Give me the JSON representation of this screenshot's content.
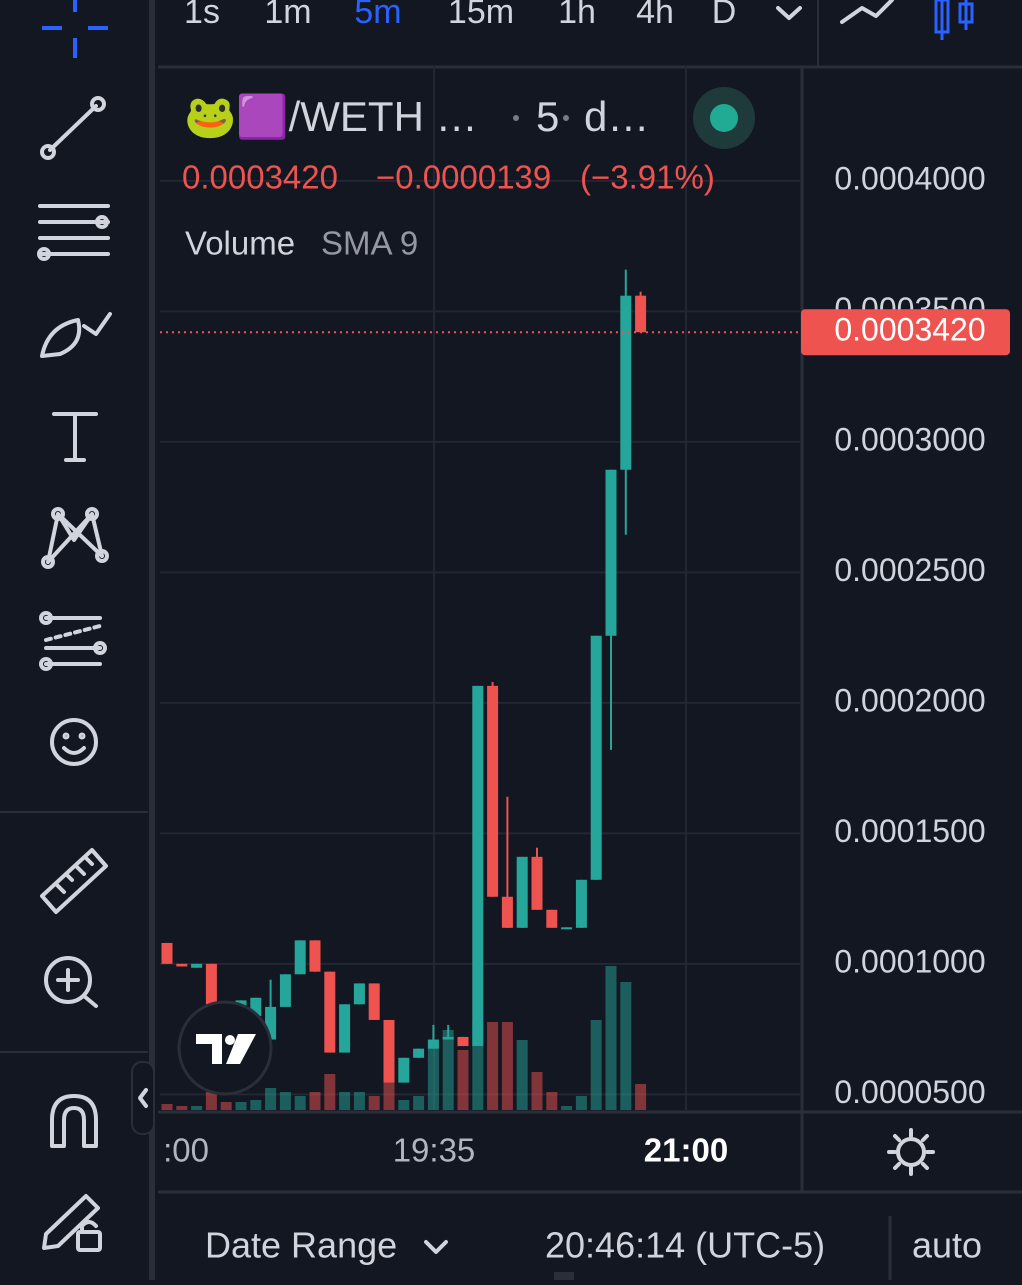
{
  "toolbar": {
    "timeframes": [
      "1s",
      "1m",
      "5m",
      "15m",
      "1h",
      "4h",
      "D"
    ],
    "active_index": 2
  },
  "legend": {
    "symbol": "🐸🟪/WETH …",
    "interval": "5",
    "exchange": "d…",
    "price": "0.0003420",
    "change": "−0.0000139",
    "change_percent": "(−3.91%)",
    "indicator": "Volume",
    "indicator_params": "SMA 9"
  },
  "chart_data": {
    "type": "candlestick",
    "open": [
      0.000108,
      0.0001,
      9.85e-05,
      0.0001,
      8.45e-05,
      8.35e-05,
      8e-05,
      7.1e-05,
      8.35e-05,
      9.6e-05,
      0.000109,
      9.7e-05,
      6.6e-05,
      8.45e-05,
      9.25e-05,
      7.85e-05,
      5.45e-05,
      6.4e-05,
      6.75e-05,
      7.1e-05,
      7.2e-05,
      6.85e-05,
      0.0002065,
      0.0001257,
      0.0001138,
      0.000141,
      0.0001207,
      0.0001138,
      0.0001138,
      0.0001322,
      0.0002257,
      0.0002893,
      0.000356
    ],
    "high": [
      0.000108,
      0.0001,
      0.0001,
      0.0001,
      8.45e-05,
      8.6e-05,
      8.7e-05,
      9.39e-05,
      9.6e-05,
      0.000109,
      0.000109,
      9.7e-05,
      8.45e-05,
      9.25e-05,
      9.25e-05,
      7.85e-05,
      6.4e-05,
      6.75e-05,
      7.66e-05,
      7.66e-05,
      7.2e-05,
      0.0002065,
      0.000208,
      0.000164,
      0.000141,
      0.0001445,
      0.0001207,
      0.000114,
      0.0001322,
      0.0002257,
      0.0002893,
      0.000366,
      0.0003575
    ],
    "low": [
      0.0001,
      9.9e-05,
      9.85e-05,
      8.45e-05,
      8.35e-05,
      8.35e-05,
      8e-05,
      7.1e-05,
      8.35e-05,
      9.6e-05,
      9.7e-05,
      6.6e-05,
      6.6e-05,
      8.45e-05,
      7.85e-05,
      5.45e-05,
      5.45e-05,
      6.4e-05,
      6.75e-05,
      7.1e-05,
      6.85e-05,
      6.85e-05,
      0.0001257,
      0.0001138,
      0.0001138,
      0.0001207,
      0.0001138,
      0.0001138,
      0.0001138,
      0.0001322,
      0.000182,
      0.0002644,
      0.000342
    ],
    "close": [
      0.0001,
      9.9e-05,
      0.0001,
      8.45e-05,
      8.35e-05,
      8.6e-05,
      8.7e-05,
      8.35e-05,
      9.6e-05,
      0.000109,
      9.7e-05,
      6.6e-05,
      8.45e-05,
      9.25e-05,
      7.85e-05,
      5.45e-05,
      6.4e-05,
      6.75e-05,
      7.1e-05,
      7.2e-05,
      6.85e-05,
      0.0002065,
      0.0001257,
      0.0001138,
      0.000141,
      0.0001207,
      0.0001138,
      0.000114,
      0.0001322,
      0.0002257,
      0.0002893,
      0.000356,
      0.000342
    ],
    "volume": [
      6,
      4,
      4,
      18,
      8,
      8,
      10,
      22,
      18,
      14,
      18,
      36,
      18,
      18,
      14,
      32,
      10,
      14,
      65,
      80,
      60,
      88,
      88,
      88,
      70,
      38,
      18,
      4,
      14,
      90,
      144,
      128,
      26
    ],
    "up_color": "#26a69a",
    "down_color": "#ef5350",
    "ylim": [
      4.4e-05,
      0.000444
    ],
    "yticks": [
      {
        "value": 5e-05,
        "label": "0.0000500"
      },
      {
        "value": 0.0001,
        "label": "0.0001000"
      },
      {
        "value": 0.00015,
        "label": "0.0001500"
      },
      {
        "value": 0.0002,
        "label": "0.0002000"
      },
      {
        "value": 0.00025,
        "label": "0.0002500"
      },
      {
        "value": 0.0003,
        "label": "0.0003000"
      },
      {
        "value": 0.00035,
        "label": "0.0003500"
      },
      {
        "value": 0.0004,
        "label": "0.0004000"
      }
    ],
    "grid": true,
    "last_price": {
      "value": 0.000342,
      "label": "0.0003420"
    }
  },
  "time_axis": {
    "labels": [
      ":00",
      "19:35",
      "21:00"
    ]
  },
  "footer": {
    "date_range": "Date Range",
    "time": "20:46:14 (UTC-5)",
    "scale": "auto"
  }
}
